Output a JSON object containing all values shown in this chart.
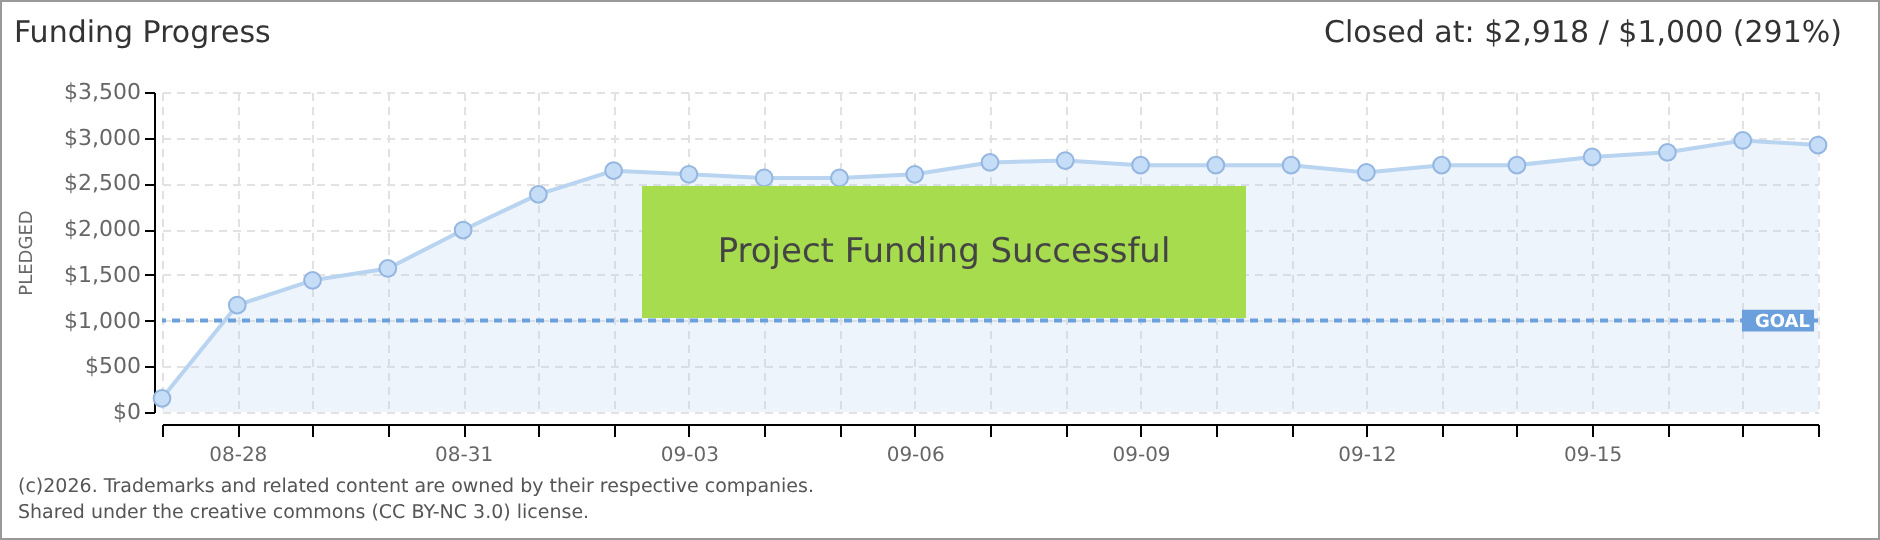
{
  "chart_data": {
    "type": "area",
    "title": "Funding Progress",
    "annotations": [
      "Closed at: $2,918 / $1,000 (291%)",
      "Project Funding Successful",
      "(c)2026. Trademarks and related content are owned by their respective companies.",
      "Shared under the creative commons (CC BY-NC 3.0) license."
    ],
    "ylabel": "PLEDGED",
    "x": [
      "--08-27",
      "--08-28",
      "--08-29",
      "--08-30",
      "--08-31",
      "--09-01",
      "--09-02",
      "--09-03",
      "--09-04",
      "--09-05",
      "--09-06",
      "--09-07",
      "--09-08",
      "--09-09",
      "--09-10",
      "--09-11",
      "--09-12",
      "--09-13",
      "--09-14",
      "--09-15",
      "--09-16",
      "--09-17",
      "--09-18"
    ],
    "series": [
      {
        "color": "#b8d4f0",
        "values": [
          150,
          1170,
          1440,
          1570,
          1990,
          2380,
          2640,
          2600,
          2560,
          2560,
          2600,
          2730,
          2750,
          2700,
          2700,
          2700,
          2620,
          2700,
          2700,
          2790,
          2840,
          2970,
          2920
        ]
      }
    ],
    "marker": "circle",
    "xlim": [
      "--08-27",
      "--09-18"
    ],
    "xticks": [
      {
        "value": "--08-27",
        "label": null
      },
      {
        "value": "--08-28",
        "label": "08-28"
      },
      {
        "value": "--08-29",
        "label": null
      },
      {
        "value": "--08-30",
        "label": null
      },
      {
        "value": "--08-31",
        "label": "08-31"
      },
      {
        "value": "--09-01",
        "label": null
      },
      {
        "value": "--09-02",
        "label": null
      },
      {
        "value": "--09-03",
        "label": "09-03"
      },
      {
        "value": "--09-04",
        "label": null
      },
      {
        "value": "--09-05",
        "label": null
      },
      {
        "value": "--09-06",
        "label": "09-06"
      },
      {
        "value": "--09-07",
        "label": null
      },
      {
        "value": "--09-08",
        "label": null
      },
      {
        "value": "--09-09",
        "label": "09-09"
      },
      {
        "value": "--09-10",
        "label": null
      },
      {
        "value": "--09-11",
        "label": null
      },
      {
        "value": "--09-12",
        "label": "09-12"
      },
      {
        "value": "--09-13",
        "label": null
      },
      {
        "value": "--09-14",
        "label": null
      },
      {
        "value": "--09-15",
        "label": "09-15"
      },
      {
        "value": "--09-16",
        "label": null
      },
      {
        "value": "--09-17",
        "label": null
      },
      {
        "value": "--09-18",
        "label": null
      }
    ],
    "ylim": [
      0,
      3500
    ],
    "yticks": [
      {
        "value": 0,
        "label": "$0"
      },
      {
        "value": 500,
        "label": "$500"
      },
      {
        "value": 1000,
        "label": "$1,000"
      },
      {
        "value": 1500,
        "label": "$1,500"
      },
      {
        "value": 2000,
        "label": "$2,000"
      },
      {
        "value": 2500,
        "label": "$2,500"
      },
      {
        "value": 3000,
        "label": "$3,000"
      },
      {
        "value": 3500,
        "label": "$3,500"
      }
    ],
    "grid": true,
    "ref_lines": [
      {
        "axis": "y",
        "value": 1000,
        "label": "GOAL",
        "color": "#6ca0dc",
        "line_style": "dashed"
      }
    ]
  }
}
